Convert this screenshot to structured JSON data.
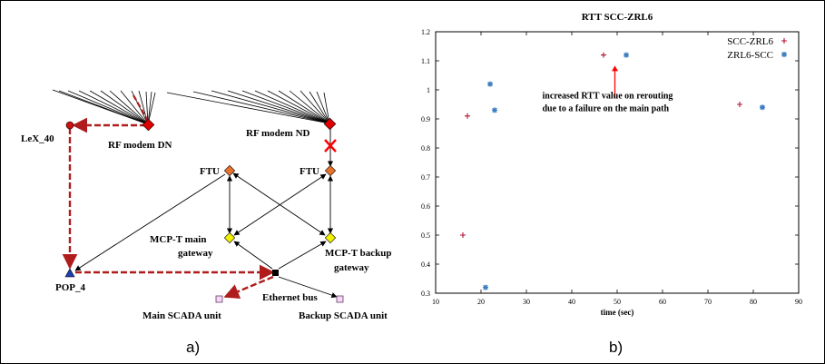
{
  "panels": {
    "a_label": "a)",
    "b_label": "b)"
  },
  "diagram": {
    "nodes": {
      "lex": "LeX_40",
      "rf_dn": "RF modem DN",
      "rf_nd": "RF modem ND",
      "ftu_left": "FTU",
      "ftu_right": "FTU",
      "mcp_main_1": "MCP-T main",
      "mcp_main_2": "gateway",
      "mcp_backup_1": "MCP-T backup",
      "mcp_backup_2": "gateway",
      "pop": "POP_4",
      "ethernet": "Ethernet bus",
      "main_scada": "Main SCADA unit",
      "backup_scada": "Backup SCADA unit"
    },
    "colors": {
      "rf_modem": "#dd0000",
      "ftu": "#e8722a",
      "gateway": "#f2f200",
      "pop": "#1f3fb0",
      "lex": "#cc1111",
      "scada": "#f4d8f4",
      "path": "#b01c1c",
      "failure": "#ff0000"
    },
    "failure_marker": "x-cross-icon"
  },
  "chart_data": {
    "type": "scatter",
    "title": "RTT SCC-ZRL6",
    "xlabel": "time (sec)",
    "ylabel": "",
    "xlim": [
      10,
      90
    ],
    "ylim": [
      0.3,
      1.2
    ],
    "xticks": [
      10,
      20,
      30,
      40,
      50,
      60,
      70,
      80,
      90
    ],
    "yticks": [
      0.3,
      0.4,
      0.5,
      0.6,
      0.7,
      0.8,
      0.9,
      1,
      1.1,
      1.2
    ],
    "grid": false,
    "legend_position": "top-right",
    "series": [
      {
        "name": "SCC-ZRL6",
        "marker": "plus",
        "color": "#b01030",
        "x": [
          16,
          17,
          47,
          77
        ],
        "y": [
          0.5,
          0.91,
          1.12,
          0.95
        ]
      },
      {
        "name": "ZRL6-SCC",
        "marker": "star",
        "color": "#3a7cc0",
        "x": [
          21,
          22,
          23,
          52,
          82
        ],
        "y": [
          0.32,
          1.02,
          0.93,
          1.12,
          0.94
        ]
      }
    ],
    "annotation": {
      "line1": "increased RTT value on rerouting",
      "line2": "due to a failure on the main path",
      "arrow_color": "#ff0000"
    }
  }
}
